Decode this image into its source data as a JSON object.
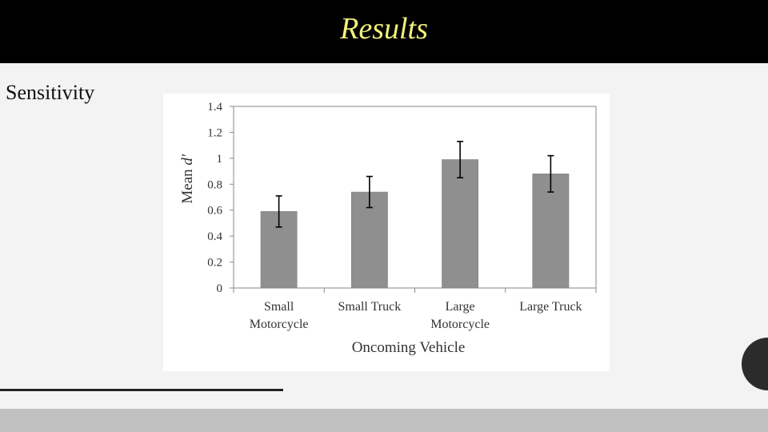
{
  "slide": {
    "title": "Results",
    "side_label": "Sensitivity",
    "colors": {
      "title_bar": "#000000",
      "title_text": "#f2f07a",
      "background": "#f3f3f3",
      "bottom_band": "#c0c0c0",
      "circle": "#2b2b2b"
    }
  },
  "chart_data": {
    "type": "bar",
    "categories": [
      [
        "Small",
        "Motorcycle"
      ],
      [
        "Small Truck"
      ],
      [
        "Large",
        "Motorcycle"
      ],
      [
        "Large Truck"
      ]
    ],
    "values": [
      0.59,
      0.74,
      0.99,
      0.88
    ],
    "error": [
      0.12,
      0.12,
      0.14,
      0.14
    ],
    "xlabel": "Oncoming  Vehicle",
    "ylabel_prefix": "Mean ",
    "ylabel_symbol": "d'",
    "ylim": [
      0,
      1.4
    ],
    "yticks": [
      0,
      0.2,
      0.4,
      0.6,
      0.8,
      1,
      1.2,
      1.4
    ],
    "ytick_labels": [
      "0",
      "0.2",
      "0.4",
      "0.6",
      "0.8",
      "1",
      "1.2",
      "1.4"
    ],
    "grid": false,
    "bar_color": "#8f8f8f",
    "error_bar_color": "#000000"
  }
}
